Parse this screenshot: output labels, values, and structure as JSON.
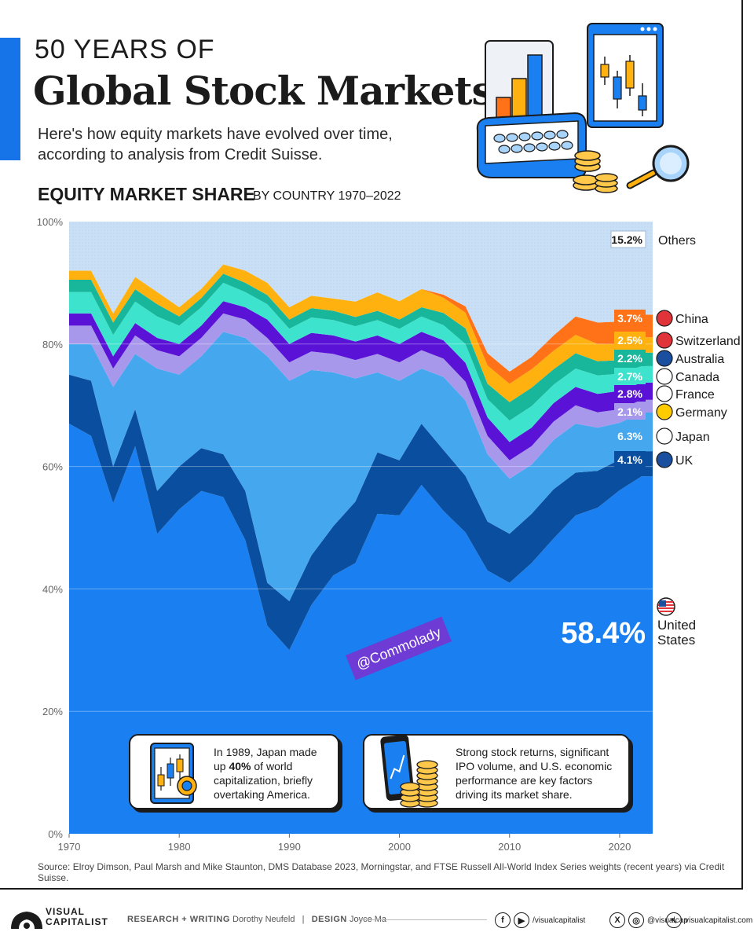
{
  "header": {
    "kicker": "50 YEARS OF",
    "title": "Global Stock Markets",
    "subtitle": "Here's how equity markets have evolved over time, according to analysis from Credit Suisse.",
    "chart_title": "EQUITY MARKET SHARE",
    "chart_subtitle": "BY COUNTRY 1970–2022"
  },
  "colors": {
    "accent": "#1673e8",
    "united_states": "#1a7ff0",
    "uk": "#0a4f9f",
    "japan": "#45a8ef",
    "germany": "#a898ec",
    "france": "#5a13d6",
    "canada": "#3ee3cd",
    "australia": "#18b69b",
    "switzerland": "#ffb20f",
    "china": "#ff7218",
    "others": "#c9dff5"
  },
  "chart_data": {
    "type": "area",
    "stacked": true,
    "xlabel": "",
    "ylabel": "",
    "xlim": [
      1970,
      2023
    ],
    "ylim": [
      0,
      100
    ],
    "y_unit": "%",
    "x_ticks": [
      "1970",
      "1980",
      "1990",
      "2000",
      "2010",
      "2020"
    ],
    "y_ticks": [
      "0%",
      "20%",
      "40%",
      "60%",
      "80%",
      "100%"
    ],
    "x": [
      1970,
      1972,
      1974,
      1976,
      1978,
      1980,
      1982,
      1984,
      1986,
      1988,
      1990,
      1992,
      1994,
      1996,
      1998,
      2000,
      2002,
      2004,
      2006,
      2008,
      2010,
      2012,
      2014,
      2016,
      2018,
      2020,
      2022
    ],
    "series": [
      {
        "name": "United States",
        "label": "58.4%",
        "values": [
          67,
          65,
          54,
          63,
          49,
          53,
          56,
          55,
          48,
          34,
          30,
          37,
          42,
          44,
          52,
          52,
          57,
          53,
          48,
          43,
          41,
          44,
          48,
          52,
          53,
          56,
          58.4
        ]
      },
      {
        "name": "UK",
        "label": "4.1%",
        "values": [
          8,
          9,
          6,
          6,
          7,
          7,
          7,
          7,
          8,
          7,
          8,
          8,
          8,
          10,
          10,
          9,
          10,
          10,
          9,
          8,
          8,
          8,
          8,
          7,
          6,
          5,
          4.1
        ]
      },
      {
        "name": "Japan",
        "label": "6.3%",
        "values": [
          5,
          6,
          13,
          9,
          20,
          15,
          15,
          20,
          25,
          37,
          36,
          30,
          25,
          20,
          13,
          13,
          9,
          12,
          12,
          11,
          9,
          8,
          8,
          8,
          7,
          6,
          6.3
        ]
      },
      {
        "name": "Germany",
        "label": "2.1%",
        "values": [
          3,
          3,
          3,
          3,
          3,
          3,
          3,
          3,
          3,
          3,
          3,
          3,
          3,
          3,
          3,
          3,
          3,
          3,
          3,
          3,
          3,
          3,
          3,
          3,
          2.5,
          2.2,
          2.1
        ]
      },
      {
        "name": "France",
        "label": "2.8%",
        "values": [
          2,
          2,
          2,
          2,
          2,
          2,
          2,
          2,
          2,
          3,
          3,
          3,
          3,
          3,
          3,
          3,
          3,
          3,
          3,
          3,
          3,
          3,
          3,
          3,
          3,
          3,
          2.8
        ]
      },
      {
        "name": "Canada",
        "label": "2.7%",
        "values": [
          3.5,
          3.5,
          3.5,
          3.5,
          3.5,
          3,
          3,
          3,
          2.5,
          2.5,
          2.5,
          2.5,
          2.5,
          2.5,
          2.5,
          2.5,
          2.5,
          2.5,
          3,
          3,
          3.5,
          3.5,
          3,
          3,
          3,
          2.8,
          2.7
        ]
      },
      {
        "name": "Australia",
        "label": "2.2%",
        "values": [
          2,
          2,
          2,
          2,
          2,
          1.5,
          1.5,
          1.5,
          1.5,
          1.5,
          1.5,
          1.5,
          1.5,
          1.5,
          1.5,
          1.5,
          1.5,
          2,
          2.5,
          2.5,
          3,
          3,
          2.5,
          2.5,
          2.3,
          2.2,
          2.2
        ]
      },
      {
        "name": "Switzerland",
        "label": "2.5%",
        "values": [
          1.5,
          1.5,
          1.5,
          2,
          2,
          1.5,
          1.5,
          1.5,
          2,
          2,
          2,
          2,
          2,
          2.5,
          3,
          3,
          3,
          2.5,
          2.5,
          3,
          3,
          3,
          3,
          3,
          2.8,
          2.6,
          2.5
        ]
      },
      {
        "name": "China",
        "label": "3.7%",
        "values": [
          0,
          0,
          0,
          0,
          0,
          0,
          0,
          0,
          0,
          0,
          0,
          0,
          0,
          0,
          0,
          0,
          0,
          0.5,
          1,
          2,
          2,
          2,
          2.5,
          3,
          3.5,
          3.7,
          3.7
        ]
      },
      {
        "name": "Others",
        "label": "15.2%",
        "values": [
          8,
          8,
          15,
          9,
          11.5,
          14,
          11,
          7,
          8,
          10,
          14,
          12,
          12.5,
          13,
          11.5,
          13,
          11,
          12,
          13.5,
          21.5,
          24.5,
          22,
          18.5,
          15.5,
          16.4,
          16.3,
          15.2
        ]
      }
    ],
    "annotations": [
      {
        "text": "@Commolady"
      }
    ]
  },
  "callouts": [
    {
      "text_before": "In 1989, Japan made up ",
      "text_bold": "40%",
      "text_after": " of world capitalization, briefly overtaking America."
    },
    {
      "text": "Strong stock returns, significant IPO volume, and U.S. economic performance are key factors driving its market share."
    }
  ],
  "source": "Source: Elroy Dimson, Paul Marsh and Mike Staunton, DMS Database 2023, Morningstar, and FTSE Russell All-World Index Series weights (recent years) via Credit Suisse.",
  "footer": {
    "logo_line1": "VISUAL",
    "logo_line2": "CAPITALIST",
    "research_label": "RESEARCH + WRITING",
    "research_name": "Dorothy Neufeld",
    "separator": "|",
    "design_label": "DESIGN",
    "design_name": "Joyce Ma",
    "youtube_handle": "/visualcapitalist",
    "x_handle": "@visualcap",
    "website": "visualcapitalist.com"
  }
}
